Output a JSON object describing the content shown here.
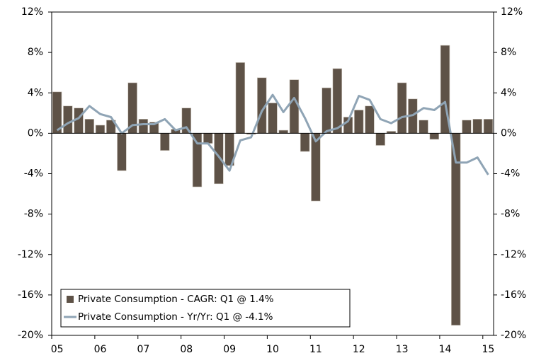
{
  "chart_data": {
    "type": "bar",
    "categories": [
      "05",
      null,
      null,
      null,
      "06",
      null,
      null,
      null,
      "07",
      null,
      null,
      null,
      "08",
      null,
      null,
      null,
      "09",
      null,
      null,
      null,
      "10",
      null,
      null,
      null,
      "11",
      null,
      null,
      null,
      "12",
      null,
      null,
      null,
      "13",
      null,
      null,
      null,
      "14",
      null,
      null,
      null,
      "15"
    ],
    "series": [
      {
        "name": "Private Consumption - CAGR: Q1 @ 1.4%",
        "type": "bar",
        "color": "#5e5247",
        "values": [
          4.1,
          2.7,
          2.5,
          1.4,
          0.8,
          1.3,
          -3.7,
          5.0,
          1.4,
          1.1,
          -1.7,
          0.4,
          2.5,
          -5.3,
          -1.0,
          -5.0,
          -3.2,
          7.0,
          -0.1,
          5.5,
          3.0,
          0.3,
          5.3,
          -1.8,
          -6.7,
          4.5,
          6.4,
          1.6,
          2.3,
          2.7,
          -1.2,
          0.2,
          5.0,
          3.4,
          1.3,
          -0.6,
          8.7,
          -19.0,
          1.3,
          1.4,
          1.4
        ]
      },
      {
        "name": "Private Consumption - Yr/Yr: Q1 @ -4.1%",
        "type": "line",
        "axis": "y2",
        "color": "#8fa4b5",
        "values": [
          0.3,
          1.0,
          1.5,
          2.7,
          1.9,
          1.6,
          0.0,
          0.8,
          0.9,
          0.9,
          1.4,
          0.3,
          0.6,
          -1.0,
          -1.0,
          -2.3,
          -3.7,
          -0.7,
          -0.4,
          2.2,
          3.8,
          2.1,
          3.5,
          1.5,
          -0.8,
          0.2,
          0.5,
          1.2,
          3.7,
          3.3,
          1.4,
          1.0,
          1.6,
          1.8,
          2.5,
          2.3,
          3.1,
          -2.9,
          -2.9,
          -2.4,
          -4.1
        ]
      }
    ],
    "ylim": [
      -20,
      12
    ],
    "yticks": [
      {
        "value": -20,
        "label": "-20%"
      },
      {
        "value": -16,
        "label": "-16%"
      },
      {
        "value": -12,
        "label": "-12%"
      },
      {
        "value": -8,
        "label": "-8%"
      },
      {
        "value": -4,
        "label": "-4%"
      },
      {
        "value": 0,
        "label": "0%"
      },
      {
        "value": 4,
        "label": "4%"
      },
      {
        "value": 8,
        "label": "8%"
      },
      {
        "value": 12,
        "label": "12%"
      }
    ],
    "y2lim": [
      -20,
      12
    ],
    "y2ticks": [
      {
        "value": -20,
        "label": "-20%"
      },
      {
        "value": -16,
        "label": "-16%"
      },
      {
        "value": -12,
        "label": "-12%"
      },
      {
        "value": -8,
        "label": "-8%"
      },
      {
        "value": -4,
        "label": "-4%"
      },
      {
        "value": 0,
        "label": "0%"
      },
      {
        "value": 4,
        "label": "4%"
      },
      {
        "value": 8,
        "label": "8%"
      },
      {
        "value": 12,
        "label": "12%"
      }
    ],
    "legend": "lower left"
  }
}
